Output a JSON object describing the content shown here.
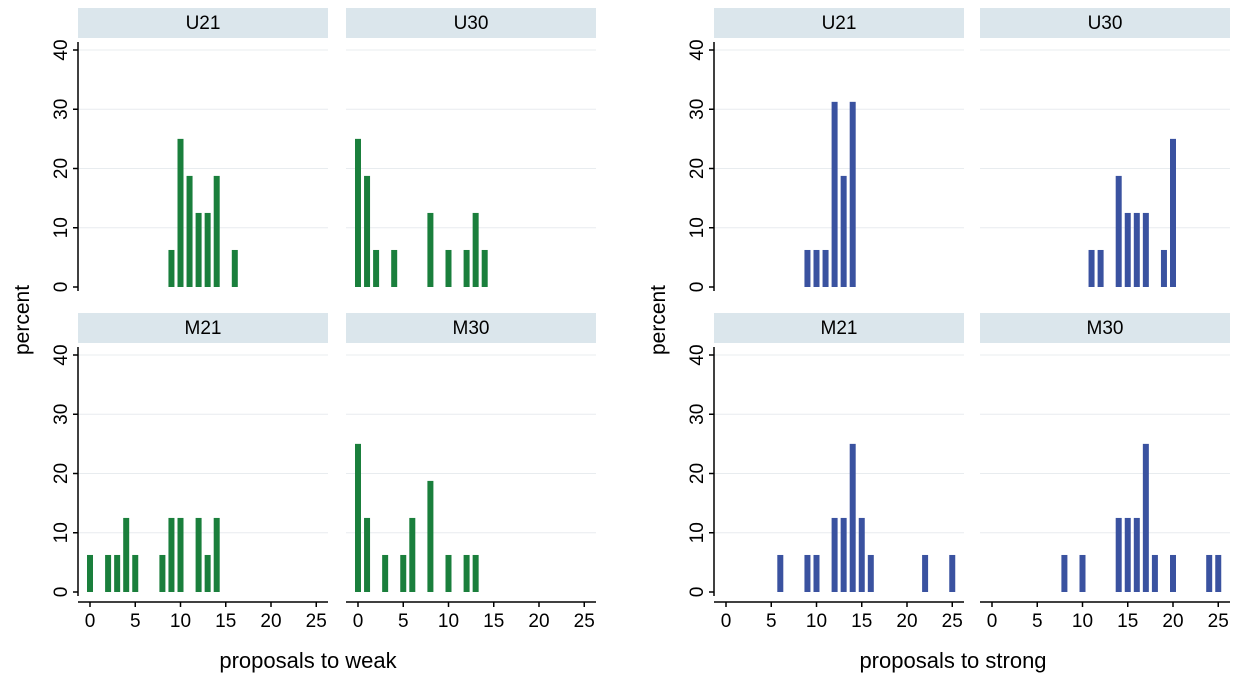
{
  "colors": {
    "weak_bar": "#1a7f3c",
    "strong_bar": "#3a52a0",
    "strip_bg": "#dbe6ec",
    "grid": "#e8ecef",
    "axis": "#000000"
  },
  "chart_data": [
    {
      "type": "bar",
      "xlabel": "proposals to weak",
      "ylabel": "percent",
      "xlim": [
        0,
        25
      ],
      "ylim": [
        0,
        40
      ],
      "x_ticks": [
        "0",
        "5",
        "10",
        "15",
        "20",
        "25"
      ],
      "y_ticks": [
        "0",
        "10",
        "20",
        "30",
        "40"
      ],
      "grid": true,
      "panels": [
        {
          "name": "U21",
          "bars": [
            {
              "x": 9,
              "y": 6.25
            },
            {
              "x": 10,
              "y": 25
            },
            {
              "x": 11,
              "y": 18.75
            },
            {
              "x": 12,
              "y": 12.5
            },
            {
              "x": 13,
              "y": 12.5
            },
            {
              "x": 14,
              "y": 18.75
            },
            {
              "x": 16,
              "y": 6.25
            }
          ]
        },
        {
          "name": "U30",
          "bars": [
            {
              "x": 0,
              "y": 25
            },
            {
              "x": 1,
              "y": 18.75
            },
            {
              "x": 2,
              "y": 6.25
            },
            {
              "x": 4,
              "y": 6.25
            },
            {
              "x": 8,
              "y": 12.5
            },
            {
              "x": 10,
              "y": 6.25
            },
            {
              "x": 12,
              "y": 6.25
            },
            {
              "x": 13,
              "y": 12.5
            },
            {
              "x": 14,
              "y": 6.25
            }
          ]
        },
        {
          "name": "M21",
          "bars": [
            {
              "x": 0,
              "y": 6.25
            },
            {
              "x": 2,
              "y": 6.25
            },
            {
              "x": 3,
              "y": 6.25
            },
            {
              "x": 4,
              "y": 12.5
            },
            {
              "x": 5,
              "y": 6.25
            },
            {
              "x": 8,
              "y": 6.25
            },
            {
              "x": 9,
              "y": 12.5
            },
            {
              "x": 10,
              "y": 12.5
            },
            {
              "x": 12,
              "y": 12.5
            },
            {
              "x": 13,
              "y": 6.25
            },
            {
              "x": 14,
              "y": 12.5
            }
          ]
        },
        {
          "name": "M30",
          "bars": [
            {
              "x": 0,
              "y": 25
            },
            {
              "x": 1,
              "y": 12.5
            },
            {
              "x": 3,
              "y": 6.25
            },
            {
              "x": 5,
              "y": 6.25
            },
            {
              "x": 6,
              "y": 12.5
            },
            {
              "x": 8,
              "y": 18.75
            },
            {
              "x": 10,
              "y": 6.25
            },
            {
              "x": 12,
              "y": 6.25
            },
            {
              "x": 13,
              "y": 6.25
            }
          ]
        }
      ]
    },
    {
      "type": "bar",
      "xlabel": "proposals to strong",
      "ylabel": "percent",
      "xlim": [
        0,
        25
      ],
      "ylim": [
        0,
        40
      ],
      "x_ticks": [
        "0",
        "5",
        "10",
        "15",
        "20",
        "25"
      ],
      "y_ticks": [
        "0",
        "10",
        "20",
        "30",
        "40"
      ],
      "grid": true,
      "panels": [
        {
          "name": "U21",
          "bars": [
            {
              "x": 9,
              "y": 6.25
            },
            {
              "x": 10,
              "y": 6.25
            },
            {
              "x": 11,
              "y": 6.25
            },
            {
              "x": 12,
              "y": 31.25
            },
            {
              "x": 13,
              "y": 18.75
            },
            {
              "x": 14,
              "y": 31.25
            }
          ]
        },
        {
          "name": "U30",
          "bars": [
            {
              "x": 11,
              "y": 6.25
            },
            {
              "x": 12,
              "y": 6.25
            },
            {
              "x": 14,
              "y": 18.75
            },
            {
              "x": 15,
              "y": 12.5
            },
            {
              "x": 16,
              "y": 12.5
            },
            {
              "x": 17,
              "y": 12.5
            },
            {
              "x": 19,
              "y": 6.25
            },
            {
              "x": 20,
              "y": 25
            }
          ]
        },
        {
          "name": "M21",
          "bars": [
            {
              "x": 6,
              "y": 6.25
            },
            {
              "x": 9,
              "y": 6.25
            },
            {
              "x": 10,
              "y": 6.25
            },
            {
              "x": 12,
              "y": 12.5
            },
            {
              "x": 13,
              "y": 12.5
            },
            {
              "x": 14,
              "y": 25
            },
            {
              "x": 15,
              "y": 12.5
            },
            {
              "x": 16,
              "y": 6.25
            },
            {
              "x": 22,
              "y": 6.25
            },
            {
              "x": 25,
              "y": 6.25
            }
          ]
        },
        {
          "name": "M30",
          "bars": [
            {
              "x": 8,
              "y": 6.25
            },
            {
              "x": 10,
              "y": 6.25
            },
            {
              "x": 14,
              "y": 12.5
            },
            {
              "x": 15,
              "y": 12.5
            },
            {
              "x": 16,
              "y": 12.5
            },
            {
              "x": 17,
              "y": 25
            },
            {
              "x": 18,
              "y": 6.25
            },
            {
              "x": 20,
              "y": 6.25
            },
            {
              "x": 24,
              "y": 6.25
            },
            {
              "x": 25,
              "y": 6.25
            }
          ]
        }
      ]
    }
  ]
}
